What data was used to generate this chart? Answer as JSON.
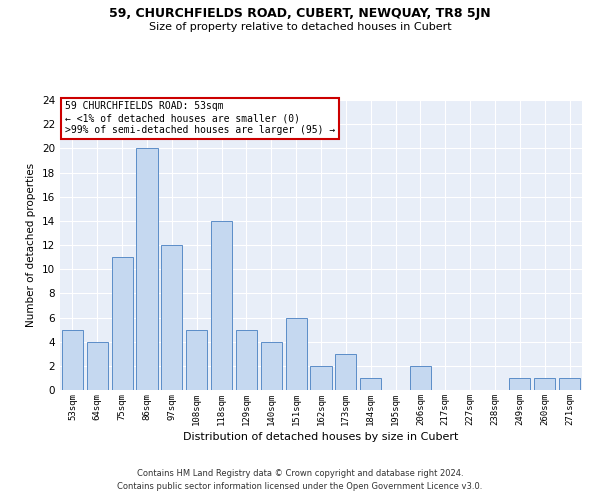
{
  "title1": "59, CHURCHFIELDS ROAD, CUBERT, NEWQUAY, TR8 5JN",
  "title2": "Size of property relative to detached houses in Cubert",
  "xlabel": "Distribution of detached houses by size in Cubert",
  "ylabel": "Number of detached properties",
  "categories": [
    "53sqm",
    "64sqm",
    "75sqm",
    "86sqm",
    "97sqm",
    "108sqm",
    "118sqm",
    "129sqm",
    "140sqm",
    "151sqm",
    "162sqm",
    "173sqm",
    "184sqm",
    "195sqm",
    "206sqm",
    "217sqm",
    "227sqm",
    "238sqm",
    "249sqm",
    "260sqm",
    "271sqm"
  ],
  "values": [
    5,
    4,
    11,
    20,
    12,
    5,
    14,
    5,
    4,
    6,
    2,
    3,
    1,
    0,
    2,
    0,
    0,
    0,
    1,
    1,
    1
  ],
  "bar_color": "#c5d8f0",
  "bar_edge_color": "#5b8dc8",
  "background_color": "#e8eef8",
  "grid_color": "#ffffff",
  "annotation_text": "59 CHURCHFIELDS ROAD: 53sqm\n← <1% of detached houses are smaller (0)\n>99% of semi-detached houses are larger (95) →",
  "annotation_box_color": "#ffffff",
  "annotation_box_edge": "#cc0000",
  "ylim": [
    0,
    24
  ],
  "yticks": [
    0,
    2,
    4,
    6,
    8,
    10,
    12,
    14,
    16,
    18,
    20,
    22,
    24
  ],
  "footnote1": "Contains HM Land Registry data © Crown copyright and database right 2024.",
  "footnote2": "Contains public sector information licensed under the Open Government Licence v3.0."
}
